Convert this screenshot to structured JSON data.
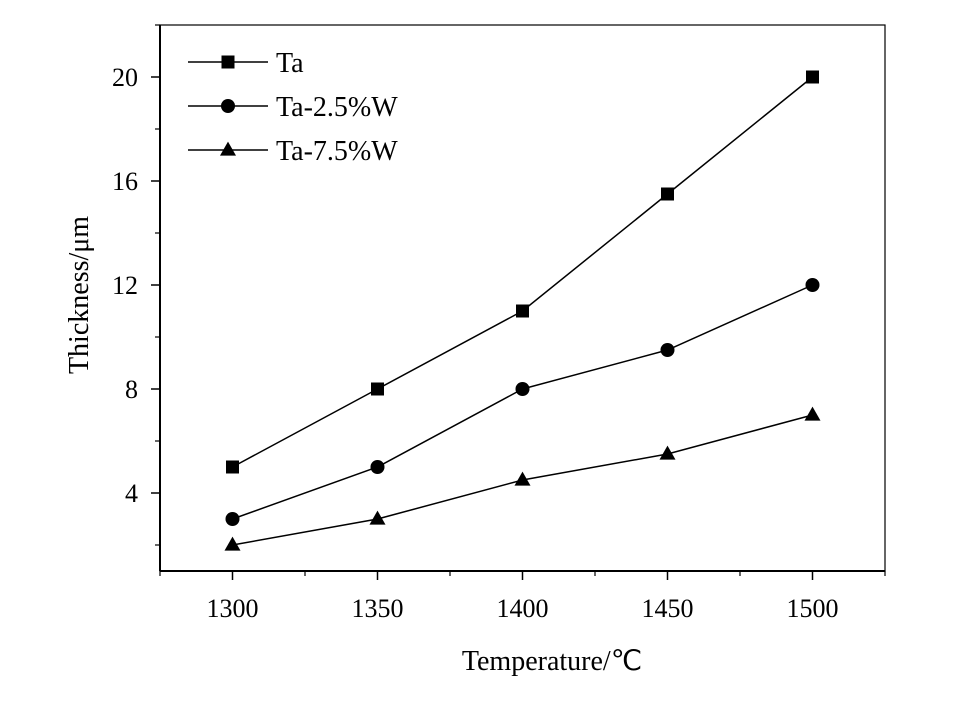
{
  "chart_data": {
    "type": "line",
    "xlabel": "Temperature/℃",
    "ylabel": "Thickness/μm",
    "x": [
      1300,
      1350,
      1400,
      1450,
      1500
    ],
    "xticks": [
      1300,
      1350,
      1400,
      1450,
      1500
    ],
    "yticks": [
      4,
      8,
      12,
      16,
      20
    ],
    "xlim": [
      1275,
      1525
    ],
    "ylim": [
      1,
      22
    ],
    "grid": false,
    "legend_position": "top-left",
    "series": [
      {
        "name": "Ta",
        "marker": "square",
        "values": [
          5,
          8,
          11,
          15.5,
          20
        ]
      },
      {
        "name": "Ta-2.5%W",
        "marker": "circle",
        "values": [
          3,
          5,
          8,
          9.5,
          12
        ]
      },
      {
        "name": "Ta-7.5%W",
        "marker": "triangle",
        "values": [
          2,
          3,
          4.5,
          5.5,
          7
        ]
      }
    ]
  }
}
